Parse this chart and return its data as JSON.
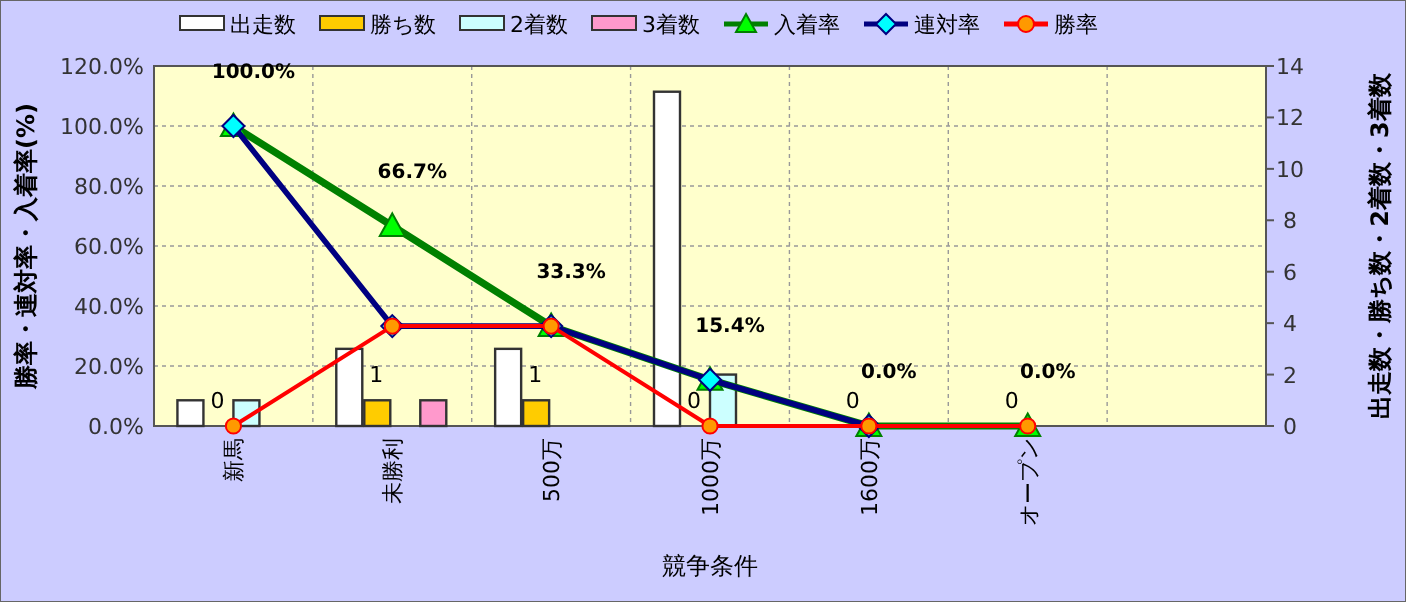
{
  "chart_data": {
    "type": "bar",
    "categories": [
      "新馬",
      "未勝利",
      "500万",
      "1000万",
      "1600万",
      "オープン",
      null
    ],
    "xlabel": "競争条件",
    "ylabel": "勝率・連対率・入着率(%)",
    "y2label": "出走数・勝ち数・2着数・3着数",
    "ylim": [
      0,
      120
    ],
    "yticks": [
      {
        "value": 0,
        "label": "0.0%"
      },
      {
        "value": 20,
        "label": "20.0%"
      },
      {
        "value": 40,
        "label": "40.0%"
      },
      {
        "value": 60,
        "label": "60.0%"
      },
      {
        "value": 80,
        "label": "80.0%"
      },
      {
        "value": 100,
        "label": "100.0%"
      },
      {
        "value": 120,
        "label": "120.0%"
      }
    ],
    "y2lim": [
      0,
      14
    ],
    "y2ticks": [
      0,
      2,
      4,
      6,
      8,
      10,
      12,
      14
    ],
    "grid": true,
    "legend": "top",
    "series": [
      {
        "name": "出走数",
        "axis": "y2",
        "color": "#ffffff",
        "values": [
          1,
          3,
          3,
          13,
          0,
          0,
          null
        ]
      },
      {
        "name": "勝ち数",
        "axis": "y2",
        "color": "#ffcc00",
        "values": [
          0,
          1,
          1,
          0,
          0,
          0,
          null
        ],
        "value_labels": [
          "0",
          "1",
          "1",
          "0",
          "0",
          "0",
          null
        ]
      },
      {
        "name": "2着数",
        "axis": "y2",
        "color": "#ccffff",
        "values": [
          1,
          0,
          0,
          2,
          0,
          0,
          null
        ]
      },
      {
        "name": "3着数",
        "axis": "y2",
        "color": "#ff99cc",
        "values": [
          0,
          1,
          0,
          0,
          0,
          0,
          null
        ]
      },
      {
        "name": "入着率",
        "type": "line",
        "color": "#008000",
        "marker": "triangle",
        "values": [
          100,
          66.7,
          33.3,
          15.4,
          0,
          0,
          null
        ],
        "value_labels": [
          "100.0%",
          "66.7%",
          "33.3%",
          "15.4%",
          "0.0%",
          "0.0%",
          null
        ]
      },
      {
        "name": "連対率",
        "type": "line",
        "color": "#000080",
        "marker": "diamond",
        "values": [
          100,
          33.3,
          33.3,
          15.4,
          0,
          null,
          null
        ]
      },
      {
        "name": "勝率",
        "type": "line",
        "color": "#ff0000",
        "marker": "circle",
        "values": [
          0,
          33.3,
          33.3,
          0,
          0,
          0,
          null
        ]
      }
    ]
  }
}
